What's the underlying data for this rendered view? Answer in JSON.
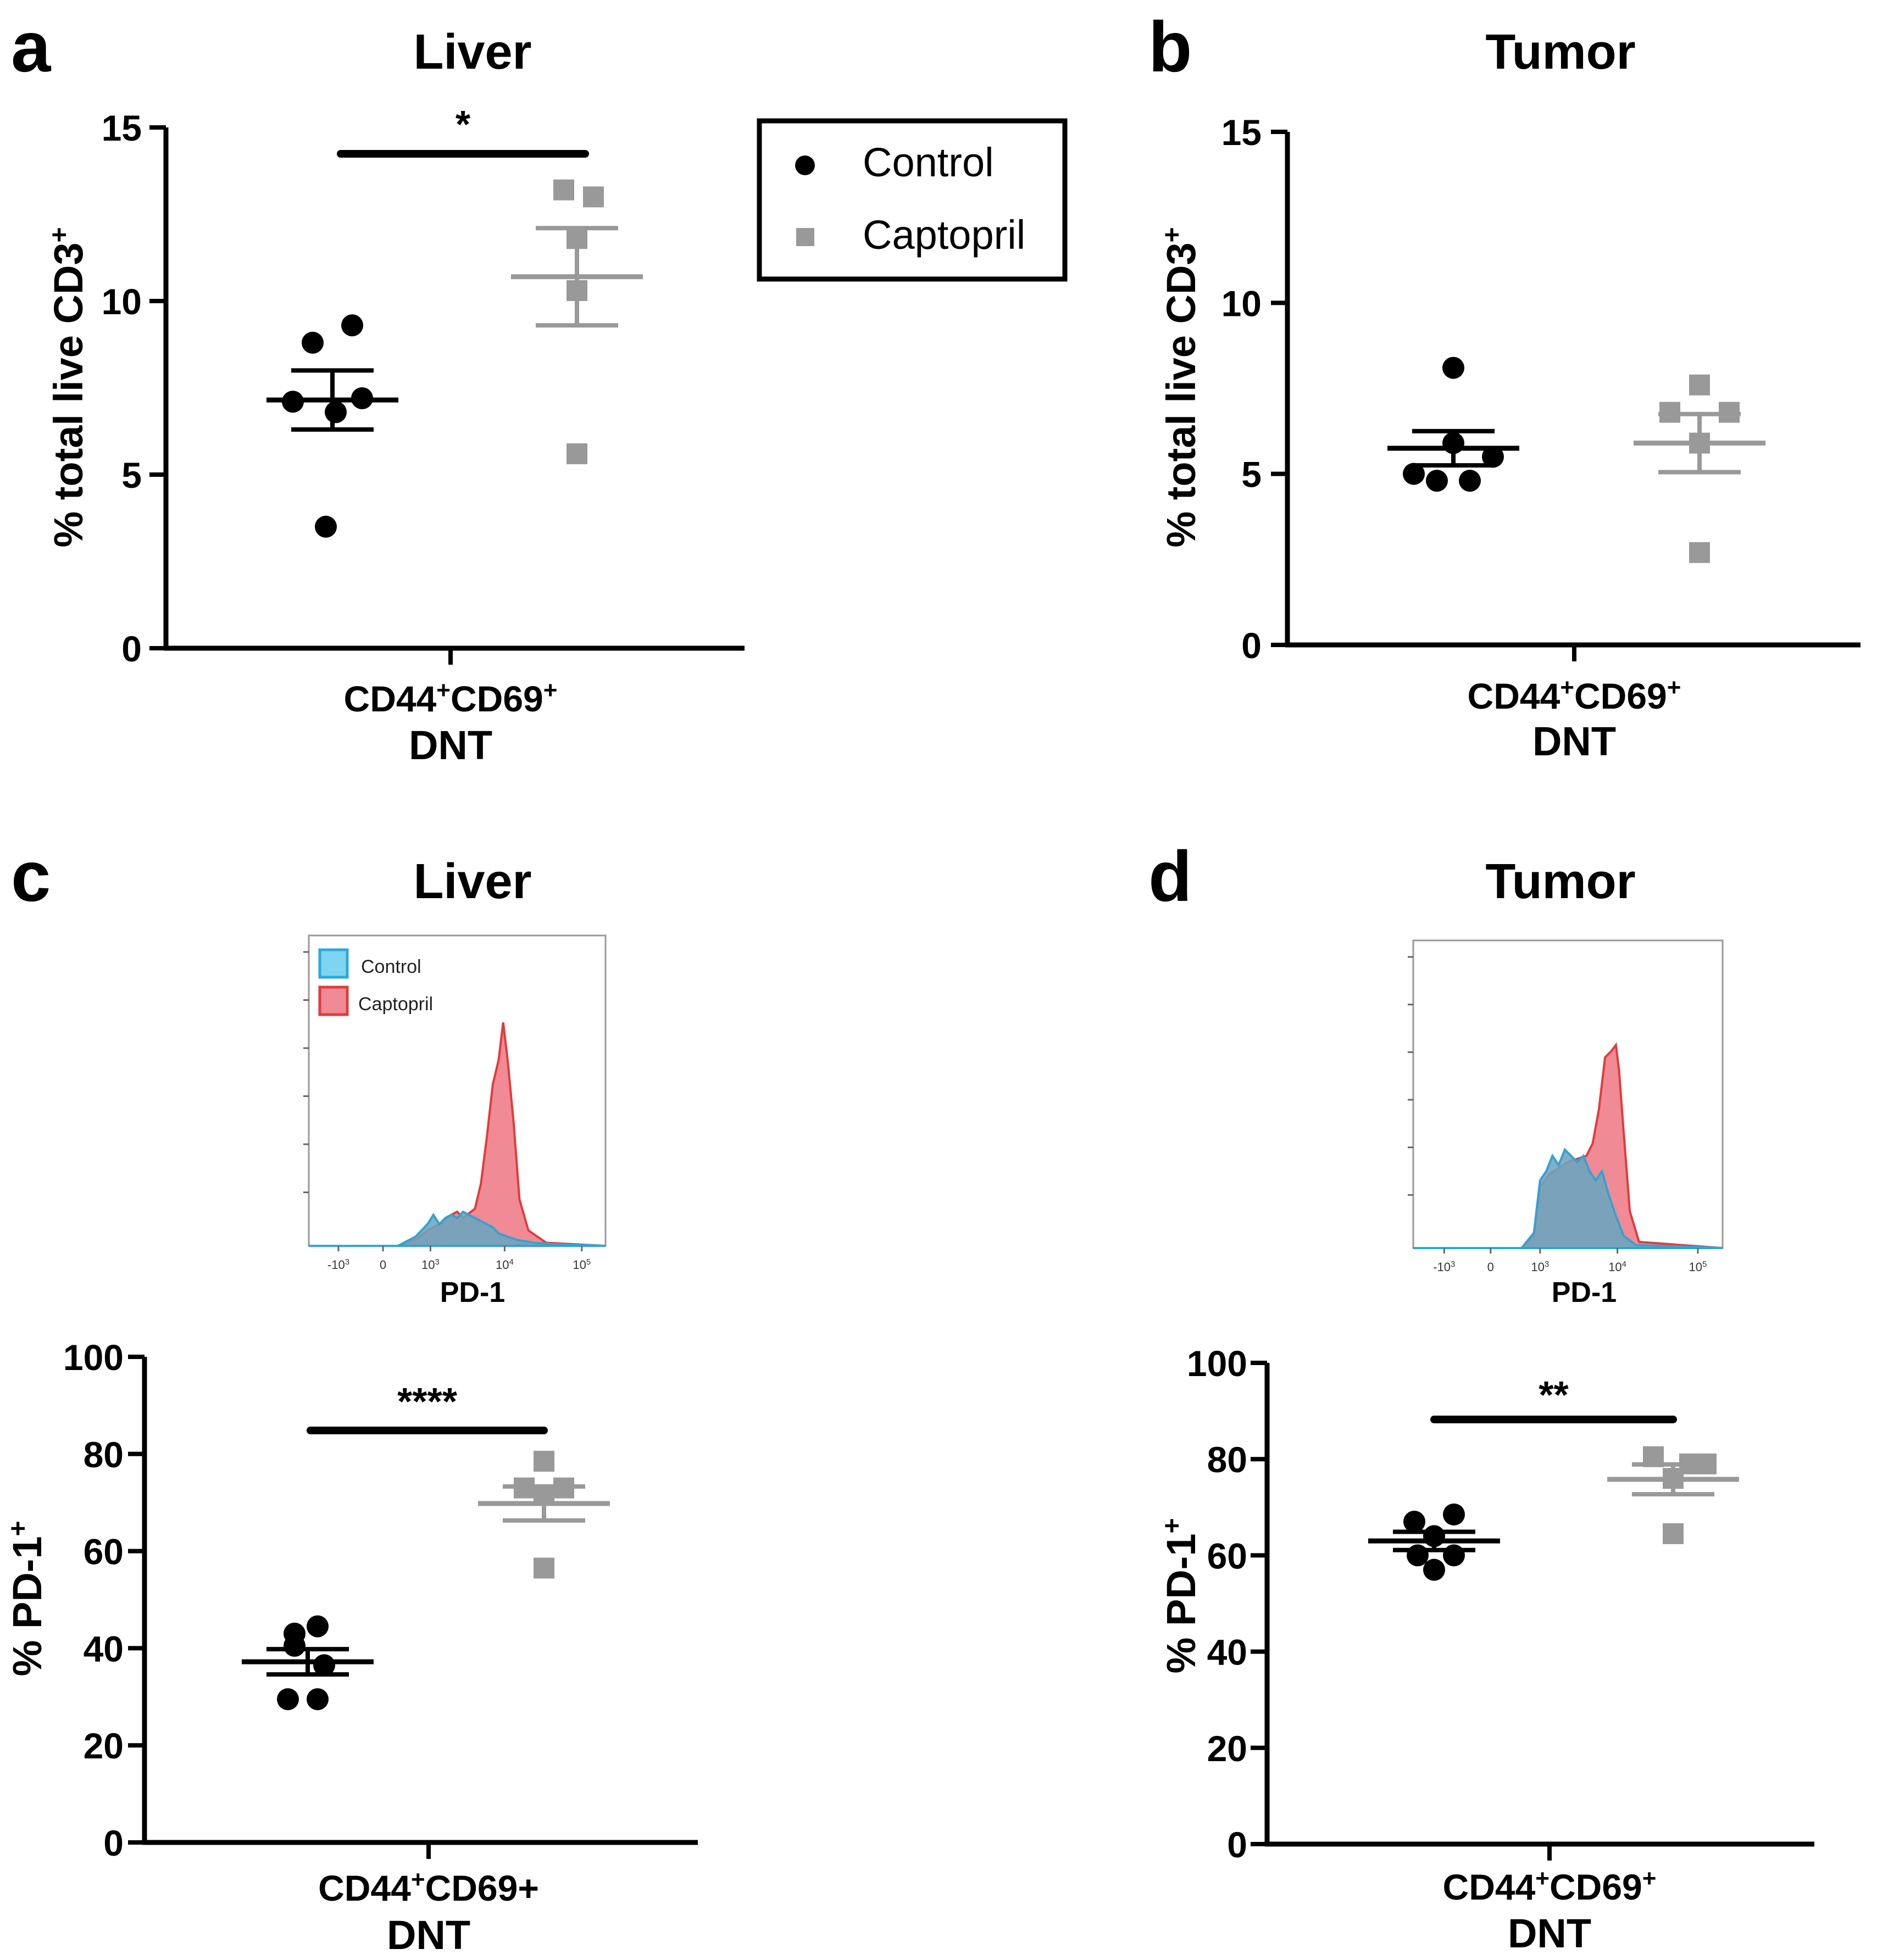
{
  "colors": {
    "control": "#000000",
    "captopril": "#999999",
    "hist_control_fill": "#7fd4f0",
    "hist_control_line": "#2aa9e0",
    "hist_captopril_fill": "#f08a94",
    "hist_captopril_line": "#e23b3b",
    "overlap": "#5f8aa3"
  },
  "legend": {
    "control": "Control",
    "captopril": "Captopril",
    "control_marker": "circle",
    "captopril_marker": "square"
  },
  "chart_data": [
    {
      "id": "a",
      "panel_label": "a",
      "title": "Liver",
      "type": "scatter",
      "ylabel": "% total live CD3",
      "ylabel_sup": "+",
      "ylim": [
        0,
        15
      ],
      "yticks": [
        "0",
        "5",
        "10",
        "15"
      ],
      "xlabel": {
        "l1a": "CD44",
        "s1": "+",
        "l1b": "CD69",
        "s2": "+",
        "l2": "DNT"
      },
      "series": [
        {
          "name": "Control",
          "mean": 7.15,
          "sem": 0.85,
          "points": [
            {
              "j": 0.6,
              "v": 9.3
            },
            {
              "j": -0.6,
              "v": 8.8
            },
            {
              "j": 0.9,
              "v": 7.2
            },
            {
              "j": -1.2,
              "v": 7.1
            },
            {
              "j": 0.1,
              "v": 6.8
            },
            {
              "j": -0.2,
              "v": 3.5
            }
          ]
        },
        {
          "name": "Captopril",
          "mean": 10.7,
          "sem": 1.4,
          "points": [
            {
              "j": -0.4,
              "v": 13.2
            },
            {
              "j": 0.5,
              "v": 13.0
            },
            {
              "j": 0.0,
              "v": 11.8
            },
            {
              "j": 0.0,
              "v": 10.3
            },
            {
              "j": 0.0,
              "v": 5.6
            }
          ]
        }
      ],
      "significance": "*"
    },
    {
      "id": "b",
      "panel_label": "b",
      "title": "Tumor",
      "type": "scatter",
      "ylabel": "% total live CD3",
      "ylabel_sup": "+",
      "ylim": [
        0,
        15
      ],
      "yticks": [
        "0",
        "5",
        "10",
        "15"
      ],
      "xlabel": {
        "l1a": "CD44",
        "s1": "+",
        "l1b": "CD69",
        "s2": "+",
        "l2": "DNT"
      },
      "series": [
        {
          "name": "Control",
          "mean": 5.75,
          "sem": 0.5,
          "points": [
            {
              "j": 0.0,
              "v": 8.1
            },
            {
              "j": 0.0,
              "v": 5.9
            },
            {
              "j": 1.2,
              "v": 5.5
            },
            {
              "j": -1.2,
              "v": 5.0
            },
            {
              "j": -0.5,
              "v": 4.8
            },
            {
              "j": 0.5,
              "v": 4.8
            }
          ]
        },
        {
          "name": "Captopril",
          "mean": 5.9,
          "sem": 0.85,
          "points": [
            {
              "j": 0.0,
              "v": 7.6
            },
            {
              "j": -0.9,
              "v": 6.8
            },
            {
              "j": 0.9,
              "v": 6.8
            },
            {
              "j": 0.0,
              "v": 5.9
            },
            {
              "j": 0.0,
              "v": 2.7
            }
          ]
        }
      ]
    },
    {
      "id": "c",
      "panel_label": "c",
      "title": "Liver",
      "type": "scatter",
      "ylabel": "% PD-1",
      "ylabel_sup": "+",
      "ylim": [
        0,
        100
      ],
      "yticks": [
        "0",
        "20",
        "40",
        "60",
        "80",
        "100"
      ],
      "xlabel": {
        "l1a": "CD44",
        "s1": "+",
        "l1b": "CD69+",
        "s2": "",
        "l2": "DNT"
      },
      "series": [
        {
          "name": "Control",
          "mean": 37.2,
          "sem": 2.6,
          "points": [
            {
              "j": -0.4,
              "v": 43.0
            },
            {
              "j": 0.3,
              "v": 44.5
            },
            {
              "j": -0.4,
              "v": 40.5
            },
            {
              "j": 0.5,
              "v": 36.5
            },
            {
              "j": -0.6,
              "v": 29.5
            },
            {
              "j": 0.3,
              "v": 29.5
            }
          ]
        },
        {
          "name": "Captopril",
          "mean": 69.8,
          "sem": 3.5,
          "points": [
            {
              "j": 0.0,
              "v": 78.5
            },
            {
              "j": -0.6,
              "v": 73.0
            },
            {
              "j": 0.6,
              "v": 73.0
            },
            {
              "j": 0.0,
              "v": 71.5
            },
            {
              "j": 0.0,
              "v": 56.5
            }
          ]
        }
      ],
      "significance": "****"
    },
    {
      "id": "d",
      "panel_label": "d",
      "title": "Tumor",
      "type": "scatter",
      "ylabel": "% PD-1",
      "ylabel_sup": "+",
      "ylim": [
        0,
        100
      ],
      "yticks": [
        "0",
        "20",
        "40",
        "60",
        "80",
        "100"
      ],
      "xlabel": {
        "l1a": "CD44",
        "s1": "+",
        "l1b": "CD69",
        "s2": "+",
        "l2": "DNT"
      },
      "series": [
        {
          "name": "Control",
          "mean": 63.0,
          "sem": 1.9,
          "points": [
            {
              "j": -0.6,
              "v": 67.0
            },
            {
              "j": 0.6,
              "v": 68.5
            },
            {
              "j": 0.0,
              "v": 64.0
            },
            {
              "j": -0.5,
              "v": 60.0
            },
            {
              "j": 0.6,
              "v": 60.0
            },
            {
              "j": 0.0,
              "v": 57.0
            }
          ]
        },
        {
          "name": "Captopril",
          "mean": 75.8,
          "sem": 3.1,
          "points": [
            {
              "j": -0.6,
              "v": 80.5
            },
            {
              "j": 0.5,
              "v": 79.0
            },
            {
              "j": 1.0,
              "v": 79.0
            },
            {
              "j": 0.0,
              "v": 76.0
            },
            {
              "j": 0.0,
              "v": 64.5
            }
          ]
        }
      ],
      "significance": "**"
    }
  ],
  "histograms": [
    {
      "id": "hist-liver",
      "xlabel": "PD-1",
      "xticks": [
        {
          "base": "-10",
          "exp": "3"
        },
        {
          "base": "0",
          "exp": ""
        },
        {
          "base": "10",
          "exp": "3"
        },
        {
          "base": "10",
          "exp": "4"
        },
        {
          "base": "10",
          "exp": "5"
        }
      ],
      "legend": [
        "Control",
        "Captopril"
      ],
      "control": [
        [
          0,
          0
        ],
        [
          0.3,
          0
        ],
        [
          0.36,
          0.03
        ],
        [
          0.4,
          0.07
        ],
        [
          0.42,
          0.1
        ],
        [
          0.44,
          0.07
        ],
        [
          0.46,
          0.09
        ],
        [
          0.48,
          0.1
        ],
        [
          0.5,
          0.09
        ],
        [
          0.52,
          0.11
        ],
        [
          0.54,
          0.1
        ],
        [
          0.56,
          0.09
        ],
        [
          0.58,
          0.08
        ],
        [
          0.6,
          0.07
        ],
        [
          0.62,
          0.06
        ],
        [
          0.64,
          0.04
        ],
        [
          0.7,
          0.02
        ],
        [
          0.76,
          0.01
        ],
        [
          0.84,
          0.005
        ],
        [
          1.0,
          0
        ]
      ],
      "captopril": [
        [
          0,
          0
        ],
        [
          0.3,
          0
        ],
        [
          0.36,
          0.02
        ],
        [
          0.4,
          0.05
        ],
        [
          0.44,
          0.07
        ],
        [
          0.48,
          0.1
        ],
        [
          0.5,
          0.11
        ],
        [
          0.52,
          0.09
        ],
        [
          0.56,
          0.12
        ],
        [
          0.58,
          0.2
        ],
        [
          0.6,
          0.35
        ],
        [
          0.62,
          0.52
        ],
        [
          0.64,
          0.6
        ],
        [
          0.655,
          0.72
        ],
        [
          0.67,
          0.6
        ],
        [
          0.69,
          0.4
        ],
        [
          0.71,
          0.15
        ],
        [
          0.74,
          0.05
        ],
        [
          0.8,
          0.01
        ],
        [
          1.0,
          0
        ]
      ]
    },
    {
      "id": "hist-tumor",
      "xlabel": "PD-1",
      "xticks": [
        {
          "base": "-10",
          "exp": "3"
        },
        {
          "base": "0",
          "exp": ""
        },
        {
          "base": "10",
          "exp": "3"
        },
        {
          "base": "10",
          "exp": "4"
        },
        {
          "base": "10",
          "exp": "5"
        }
      ],
      "legend": [],
      "control": [
        [
          0,
          0
        ],
        [
          0.35,
          0
        ],
        [
          0.39,
          0.05
        ],
        [
          0.41,
          0.22
        ],
        [
          0.43,
          0.25
        ],
        [
          0.45,
          0.3
        ],
        [
          0.47,
          0.27
        ],
        [
          0.49,
          0.32
        ],
        [
          0.51,
          0.3
        ],
        [
          0.53,
          0.28
        ],
        [
          0.55,
          0.3
        ],
        [
          0.57,
          0.25
        ],
        [
          0.59,
          0.22
        ],
        [
          0.61,
          0.25
        ],
        [
          0.63,
          0.18
        ],
        [
          0.65,
          0.12
        ],
        [
          0.68,
          0.04
        ],
        [
          0.72,
          0.01
        ],
        [
          1.0,
          0
        ]
      ],
      "captopril": [
        [
          0,
          0
        ],
        [
          0.35,
          0
        ],
        [
          0.39,
          0.04
        ],
        [
          0.41,
          0.2
        ],
        [
          0.44,
          0.24
        ],
        [
          0.47,
          0.26
        ],
        [
          0.5,
          0.28
        ],
        [
          0.53,
          0.29
        ],
        [
          0.56,
          0.3
        ],
        [
          0.58,
          0.34
        ],
        [
          0.6,
          0.45
        ],
        [
          0.62,
          0.62
        ],
        [
          0.64,
          0.64
        ],
        [
          0.655,
          0.66
        ],
        [
          0.665,
          0.58
        ],
        [
          0.68,
          0.38
        ],
        [
          0.7,
          0.12
        ],
        [
          0.73,
          0.02
        ],
        [
          1.0,
          0
        ]
      ]
    }
  ]
}
